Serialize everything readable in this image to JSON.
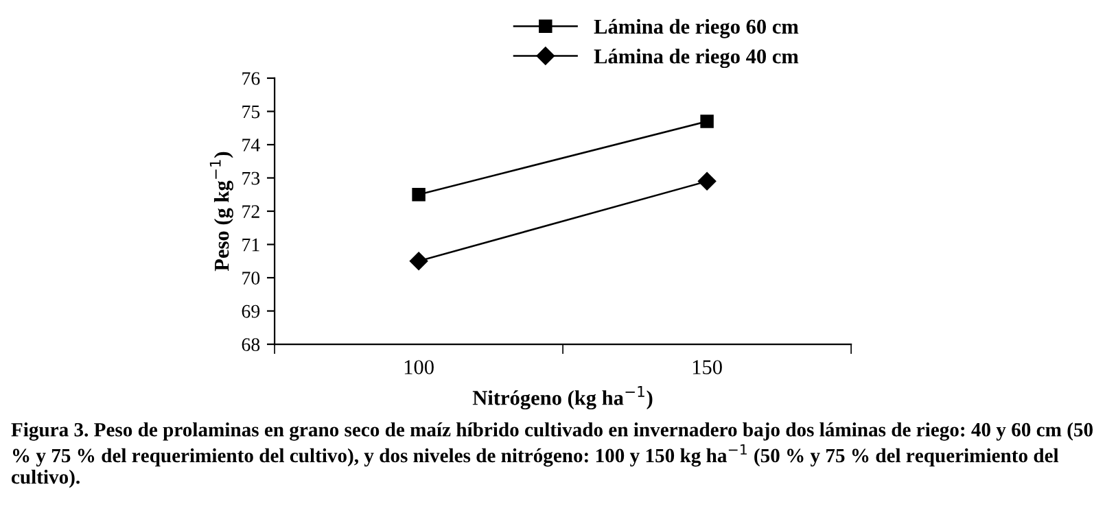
{
  "chart_data": {
    "type": "line",
    "xlabel": "Nitrógeno (kg ha$^{−1}$)",
    "ylabel": "Peso (g kg$^{−1}$)",
    "categories": [
      "100",
      "150"
    ],
    "series": [
      {
        "name": "Lámina de riego 60 cm",
        "color": "#000000",
        "marker": "square",
        "values": [
          72.5,
          74.7
        ]
      },
      {
        "name": "Lámina de riego 40 cm",
        "color": "#000000",
        "marker": "diamond",
        "values": [
          70.5,
          72.9
        ]
      }
    ],
    "ylim": [
      68,
      76
    ],
    "yticks": [
      68,
      69,
      70,
      71,
      72,
      73,
      74,
      75,
      76
    ],
    "grid": false,
    "legend": "top",
    "line_style": "solid",
    "annotations": [
      "Figura 3. Peso de prolaminas en grano seco de maíz híbrido cultivado en invernadero bajo dos láminas de riego: 40 y 60 cm (50 % y 75 % del requerimiento del cultivo), y dos niveles de nitrógeno: 100 y 150 kg ha$^{−1}$ (50 % y 75 % del requerimiento del cultivo)."
    ]
  }
}
